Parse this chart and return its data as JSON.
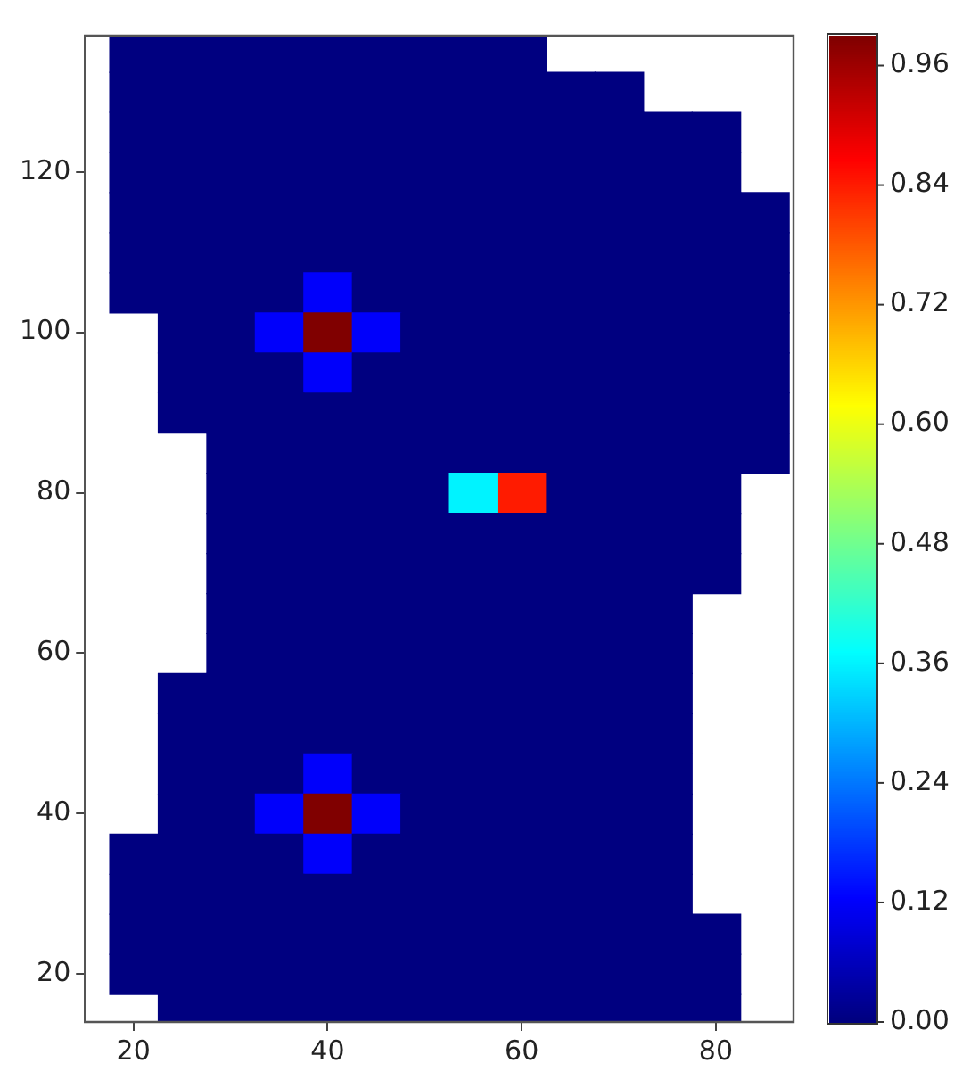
{
  "chart_data": {
    "type": "heatmap",
    "x": [
      15,
      20,
      25,
      30,
      35,
      40,
      45,
      50,
      55,
      60,
      65,
      70,
      75,
      80,
      85
    ],
    "y": [
      135,
      130,
      125,
      120,
      115,
      110,
      105,
      100,
      95,
      90,
      85,
      80,
      75,
      70,
      65,
      60,
      55,
      50,
      45,
      40,
      35,
      30,
      25,
      20,
      15
    ],
    "cells": [
      [
        null,
        0,
        0,
        0,
        0,
        0,
        0,
        0,
        0,
        0,
        null,
        null,
        null,
        null,
        null
      ],
      [
        null,
        0,
        0,
        0,
        0,
        0,
        0,
        0,
        0,
        0,
        0,
        0,
        null,
        null,
        null
      ],
      [
        null,
        0,
        0,
        0,
        0,
        0,
        0,
        0,
        0,
        0,
        0,
        0,
        0,
        0,
        null
      ],
      [
        null,
        0,
        0,
        0,
        0,
        0,
        0,
        0,
        0,
        0,
        0,
        0,
        0,
        0,
        null
      ],
      [
        null,
        0,
        0,
        0,
        0,
        0,
        0,
        0,
        0,
        0,
        0,
        0,
        0,
        0,
        0
      ],
      [
        null,
        0,
        0,
        0,
        0,
        0,
        0,
        0,
        0,
        0,
        0,
        0,
        0,
        0,
        0
      ],
      [
        null,
        0,
        0,
        0,
        0,
        0.12,
        0,
        0,
        0,
        0,
        0,
        0,
        0,
        0,
        0
      ],
      [
        null,
        null,
        0,
        0,
        0.12,
        0.99,
        0.12,
        0,
        0,
        0,
        0,
        0,
        0,
        0,
        0
      ],
      [
        null,
        null,
        0,
        0,
        0,
        0.12,
        0,
        0,
        0,
        0,
        0,
        0,
        0,
        0,
        0
      ],
      [
        null,
        null,
        0,
        0,
        0,
        0,
        0,
        0,
        0,
        0,
        0,
        0,
        0,
        0,
        0
      ],
      [
        null,
        null,
        null,
        0,
        0,
        0,
        0,
        0,
        0,
        0,
        0,
        0,
        0,
        0,
        0
      ],
      [
        null,
        null,
        null,
        0,
        0,
        0,
        0,
        0,
        0.36,
        0.84,
        0,
        0,
        0,
        0,
        null
      ],
      [
        null,
        null,
        null,
        0,
        0,
        0,
        0,
        0,
        0,
        0,
        0,
        0,
        0,
        0,
        null
      ],
      [
        null,
        null,
        null,
        0,
        0,
        0,
        0,
        0,
        0,
        0,
        0,
        0,
        0,
        0,
        null
      ],
      [
        null,
        null,
        null,
        0,
        0,
        0,
        0,
        0,
        0,
        0,
        0,
        0,
        0,
        null,
        null
      ],
      [
        null,
        null,
        null,
        0,
        0,
        0,
        0,
        0,
        0,
        0,
        0,
        0,
        0,
        null,
        null
      ],
      [
        null,
        null,
        0,
        0,
        0,
        0,
        0,
        0,
        0,
        0,
        0,
        0,
        0,
        null,
        null
      ],
      [
        null,
        null,
        0,
        0,
        0,
        0,
        0,
        0,
        0,
        0,
        0,
        0,
        0,
        null,
        null
      ],
      [
        null,
        null,
        0,
        0,
        0,
        0.12,
        0,
        0,
        0,
        0,
        0,
        0,
        0,
        null,
        null
      ],
      [
        null,
        null,
        0,
        0,
        0.12,
        0.99,
        0.12,
        0,
        0,
        0,
        0,
        0,
        0,
        null,
        null
      ],
      [
        null,
        0,
        0,
        0,
        0,
        0.12,
        0,
        0,
        0,
        0,
        0,
        0,
        0,
        null,
        null
      ],
      [
        null,
        0,
        0,
        0,
        0,
        0,
        0,
        0,
        0,
        0,
        0,
        0,
        0,
        null,
        null
      ],
      [
        null,
        0,
        0,
        0,
        0,
        0,
        0,
        0,
        0,
        0,
        0,
        0,
        0,
        0,
        null
      ],
      [
        null,
        0,
        0,
        0,
        0,
        0,
        0,
        0,
        0,
        0,
        0,
        0,
        0,
        0,
        null
      ],
      [
        null,
        null,
        0,
        0,
        0,
        0,
        0,
        0,
        0,
        0,
        0,
        0,
        0,
        0,
        null
      ]
    ],
    "xlim": [
      15,
      88
    ],
    "xticks": [
      20,
      40,
      60,
      80
    ],
    "ylim": [
      14,
      137
    ],
    "yticks": [
      20,
      40,
      60,
      80,
      100,
      120
    ],
    "clim": [
      0,
      0.99
    ],
    "cticks": [
      {
        "value": 0,
        "label": "0.00"
      },
      {
        "value": 0.12,
        "label": "0.12"
      },
      {
        "value": 0.24,
        "label": "0.24"
      },
      {
        "value": 0.36,
        "label": "0.36"
      },
      {
        "value": 0.48,
        "label": "0.48"
      },
      {
        "value": 0.6,
        "label": "0.60"
      },
      {
        "value": 0.72,
        "label": "0.72"
      },
      {
        "value": 0.84,
        "label": "0.84"
      },
      {
        "value": 0.96,
        "label": "0.96"
      }
    ],
    "grid": false
  }
}
